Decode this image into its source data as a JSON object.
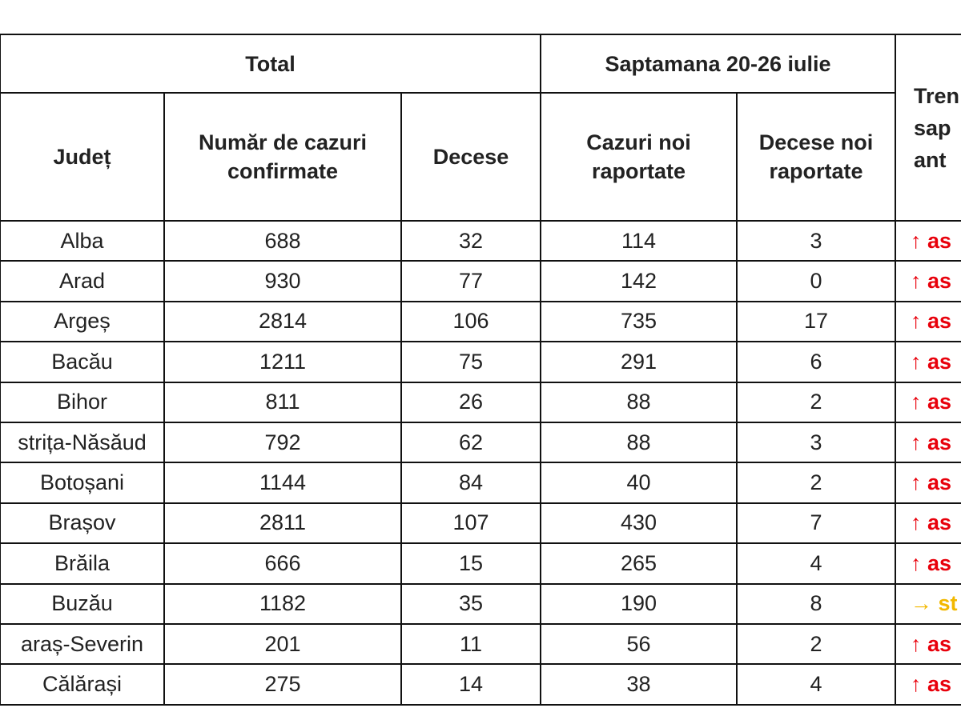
{
  "header": {
    "group_total": "Total",
    "group_week": "Saptamana 20-26 iulie",
    "trend_lines": [
      "Tren",
      "sap",
      "ant"
    ],
    "columns": [
      "Județ",
      "Număr de cazuri confirmate",
      "Decese",
      "Cazuri noi raportate",
      "Decese noi raportate"
    ]
  },
  "table": {
    "rows": [
      [
        "Alba",
        688,
        32,
        114,
        3,
        {
          "text": "↑ as",
          "color": "#e8000b"
        }
      ],
      [
        "Arad",
        930,
        77,
        142,
        0,
        {
          "text": "↑ as",
          "color": "#e8000b"
        }
      ],
      [
        "Argeș",
        2814,
        106,
        735,
        17,
        {
          "text": "↑ as",
          "color": "#e8000b"
        }
      ],
      [
        "Bacău",
        1211,
        75,
        291,
        6,
        {
          "text": "↑ as",
          "color": "#e8000b"
        }
      ],
      [
        "Bihor",
        811,
        26,
        88,
        2,
        {
          "text": "↑ as",
          "color": "#e8000b"
        }
      ],
      [
        "strița-Năsăud",
        792,
        62,
        88,
        3,
        {
          "text": "↑ as",
          "color": "#e8000b"
        }
      ],
      [
        "Botoșani",
        1144,
        84,
        40,
        2,
        {
          "text": "↑ as",
          "color": "#e8000b"
        }
      ],
      [
        "Brașov",
        2811,
        107,
        430,
        7,
        {
          "text": "↑ as",
          "color": "#e8000b"
        }
      ],
      [
        "Brăila",
        666,
        15,
        265,
        4,
        {
          "text": "↑ as",
          "color": "#e8000b"
        }
      ],
      [
        "Buzău",
        1182,
        35,
        190,
        8,
        {
          "text": "→ st",
          "color": "#f2b800"
        }
      ],
      [
        "araș-Severin",
        201,
        11,
        56,
        2,
        {
          "text": "↑ as",
          "color": "#e8000b"
        }
      ],
      [
        "Călărași",
        275,
        14,
        38,
        4,
        {
          "text": "↑ as",
          "color": "#e8000b"
        }
      ]
    ]
  }
}
